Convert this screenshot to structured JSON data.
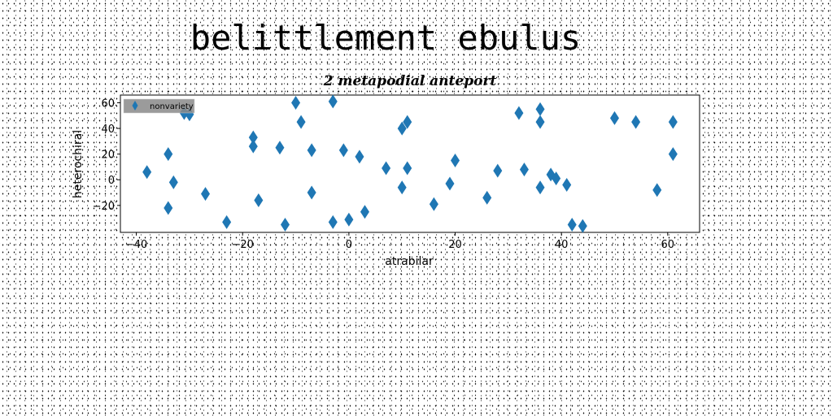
{
  "header": {
    "title": "belittlement ebulus"
  },
  "chart_data": {
    "type": "scatter",
    "title": "2 metapodial anteport",
    "xlabel": "atrabilar",
    "ylabel": "heterochiral",
    "xlim": [
      -43,
      66
    ],
    "ylim": [
      -41,
      66
    ],
    "xticks": [
      -40,
      -20,
      0,
      20,
      40,
      60
    ],
    "yticks": [
      -20,
      0,
      20,
      40,
      60
    ],
    "grid": false,
    "legend_position": "top-left",
    "marker": "diamond",
    "series": [
      {
        "name": "nonvariety",
        "color": "#1f77b4",
        "points": [
          {
            "x": -38,
            "y": 6
          },
          {
            "x": -34,
            "y": 20
          },
          {
            "x": -34,
            "y": -22
          },
          {
            "x": -33,
            "y": -2
          },
          {
            "x": -31,
            "y": 52
          },
          {
            "x": -30,
            "y": 51
          },
          {
            "x": -27,
            "y": -11
          },
          {
            "x": -23,
            "y": -33
          },
          {
            "x": -18,
            "y": 33
          },
          {
            "x": -18,
            "y": 26
          },
          {
            "x": -17,
            "y": -16
          },
          {
            "x": -13,
            "y": 25
          },
          {
            "x": -12,
            "y": -35
          },
          {
            "x": -10,
            "y": 60
          },
          {
            "x": -9,
            "y": 45
          },
          {
            "x": -7,
            "y": 23
          },
          {
            "x": -7,
            "y": -10
          },
          {
            "x": -3,
            "y": 61
          },
          {
            "x": -3,
            "y": -33
          },
          {
            "x": -1,
            "y": 23
          },
          {
            "x": 0,
            "y": -31
          },
          {
            "x": 2,
            "y": 18
          },
          {
            "x": 3,
            "y": -25
          },
          {
            "x": 7,
            "y": 9
          },
          {
            "x": 10,
            "y": 40
          },
          {
            "x": 10,
            "y": -6
          },
          {
            "x": 11,
            "y": 45
          },
          {
            "x": 11,
            "y": 9
          },
          {
            "x": 16,
            "y": -19
          },
          {
            "x": 19,
            "y": -3
          },
          {
            "x": 20,
            "y": 15
          },
          {
            "x": 26,
            "y": -14
          },
          {
            "x": 28,
            "y": 7
          },
          {
            "x": 32,
            "y": 52
          },
          {
            "x": 33,
            "y": 8
          },
          {
            "x": 36,
            "y": 55
          },
          {
            "x": 36,
            "y": 45
          },
          {
            "x": 36,
            "y": -6
          },
          {
            "x": 38,
            "y": 4
          },
          {
            "x": 39,
            "y": 1
          },
          {
            "x": 41,
            "y": -4
          },
          {
            "x": 42,
            "y": -35
          },
          {
            "x": 44,
            "y": -36
          },
          {
            "x": 50,
            "y": 48
          },
          {
            "x": 54,
            "y": 45
          },
          {
            "x": 58,
            "y": -8
          },
          {
            "x": 61,
            "y": 45
          },
          {
            "x": 61,
            "y": 20
          }
        ]
      }
    ]
  }
}
